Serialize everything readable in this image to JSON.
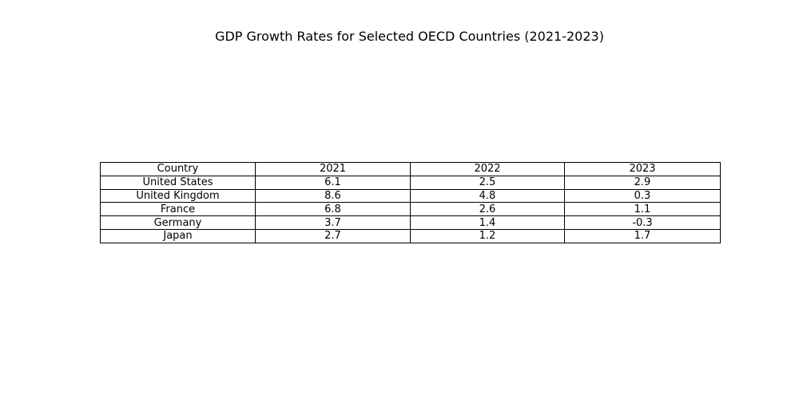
{
  "chart_data": {
    "type": "table",
    "title": "GDP Growth Rates for Selected OECD Countries (2021-2023)",
    "columns": [
      "Country",
      "2021",
      "2022",
      "2023"
    ],
    "rows": [
      [
        "United States",
        "6.1",
        "2.5",
        "2.9"
      ],
      [
        "United Kingdom",
        "8.6",
        "4.8",
        "0.3"
      ],
      [
        "France",
        "6.8",
        "2.6",
        "1.1"
      ],
      [
        "Germany",
        "3.7",
        "1.4",
        "-0.3"
      ],
      [
        "Japan",
        "2.7",
        "1.2",
        "1.7"
      ]
    ]
  },
  "colors": {
    "border": "#000000",
    "text": "#000000",
    "background": "#ffffff"
  }
}
